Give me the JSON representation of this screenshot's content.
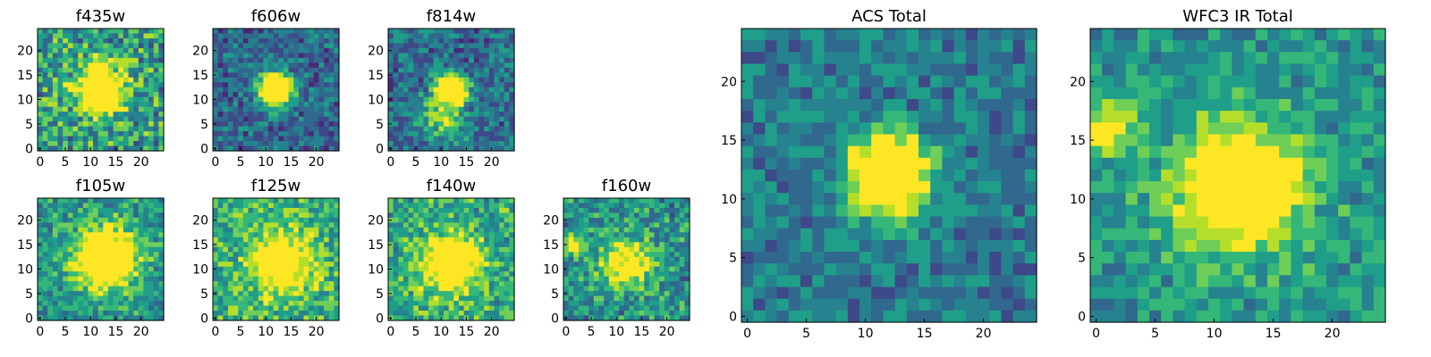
{
  "figure": {
    "panels": [
      {
        "key": "f435w",
        "title": "f435w",
        "xticks": [
          "0",
          "5",
          "10",
          "15",
          "20"
        ],
        "yticks": [
          "0",
          "5",
          "10",
          "15",
          "20"
        ],
        "bright": [
          [
            12,
            12,
            3.2,
            1.0
          ]
        ],
        "noise": 0.28,
        "base": 0.55
      },
      {
        "key": "f606w",
        "title": "f606w",
        "xticks": [
          "0",
          "5",
          "10",
          "15",
          "20"
        ],
        "yticks": [
          "0",
          "5",
          "10",
          "15",
          "20"
        ],
        "bright": [
          [
            12,
            12,
            2.2,
            1.3
          ]
        ],
        "noise": 0.18,
        "base": 0.35
      },
      {
        "key": "f814w",
        "title": "f814w",
        "xticks": [
          "0",
          "5",
          "10",
          "15",
          "20"
        ],
        "yticks": [
          "0",
          "5",
          "10",
          "15",
          "20"
        ],
        "bright": [
          [
            12,
            12,
            2.0,
            1.3
          ],
          [
            10,
            6,
            3.0,
            0.4
          ]
        ],
        "noise": 0.2,
        "base": 0.38
      },
      {
        "key": "f105w",
        "title": "f105w",
        "xticks": [
          "0",
          "5",
          "10",
          "15",
          "20"
        ],
        "yticks": [
          "0",
          "5",
          "10",
          "15",
          "20"
        ],
        "bright": [
          [
            13,
            12,
            4.5,
            0.9
          ]
        ],
        "noise": 0.2,
        "base": 0.5
      },
      {
        "key": "f125w",
        "title": "f125w",
        "xticks": [
          "0",
          "5",
          "10",
          "15",
          "20"
        ],
        "yticks": [
          "0",
          "5",
          "10",
          "15",
          "20"
        ],
        "bright": [
          [
            13,
            11,
            4.5,
            0.6
          ]
        ],
        "noise": 0.22,
        "base": 0.62
      },
      {
        "key": "f140w",
        "title": "f140w",
        "xticks": [
          "0",
          "5",
          "10",
          "15",
          "20"
        ],
        "yticks": [
          "0",
          "5",
          "10",
          "15",
          "20"
        ],
        "bright": [
          [
            12,
            11,
            4.0,
            0.7
          ]
        ],
        "noise": 0.22,
        "base": 0.6
      },
      {
        "key": "f160w",
        "title": "f160w",
        "xticks": [
          "0",
          "5",
          "10",
          "15",
          "20"
        ],
        "yticks": [
          "0",
          "5",
          "10",
          "15",
          "20"
        ],
        "bright": [
          [
            12,
            11,
            3.5,
            0.6
          ],
          [
            1,
            15,
            1.5,
            0.5
          ]
        ],
        "noise": 0.22,
        "base": 0.5
      },
      {
        "key": "acs_total",
        "title": "ACS Total",
        "xticks": [
          "0",
          "5",
          "10",
          "15",
          "20"
        ],
        "yticks": [
          "0",
          "5",
          "10",
          "15",
          "20"
        ],
        "bright": [
          [
            12,
            12,
            2.2,
            1.3
          ]
        ],
        "noise": 0.16,
        "base": 0.42
      },
      {
        "key": "wfc3_total",
        "title": "WFC3 IR Total",
        "xticks": [
          "0",
          "5",
          "10",
          "15",
          "20"
        ],
        "yticks": [
          "0",
          "5",
          "10",
          "15",
          "20"
        ],
        "bright": [
          [
            12,
            11,
            3.8,
            0.8
          ],
          [
            1,
            16,
            1.4,
            0.6
          ]
        ],
        "noise": 0.16,
        "base": 0.52
      }
    ],
    "grid_size": 25,
    "colormap": [
      "#440154",
      "#482878",
      "#3e4989",
      "#31688e",
      "#26828e",
      "#1f9e89",
      "#35b779",
      "#6ece58",
      "#b5de2b",
      "#fde725"
    ]
  }
}
